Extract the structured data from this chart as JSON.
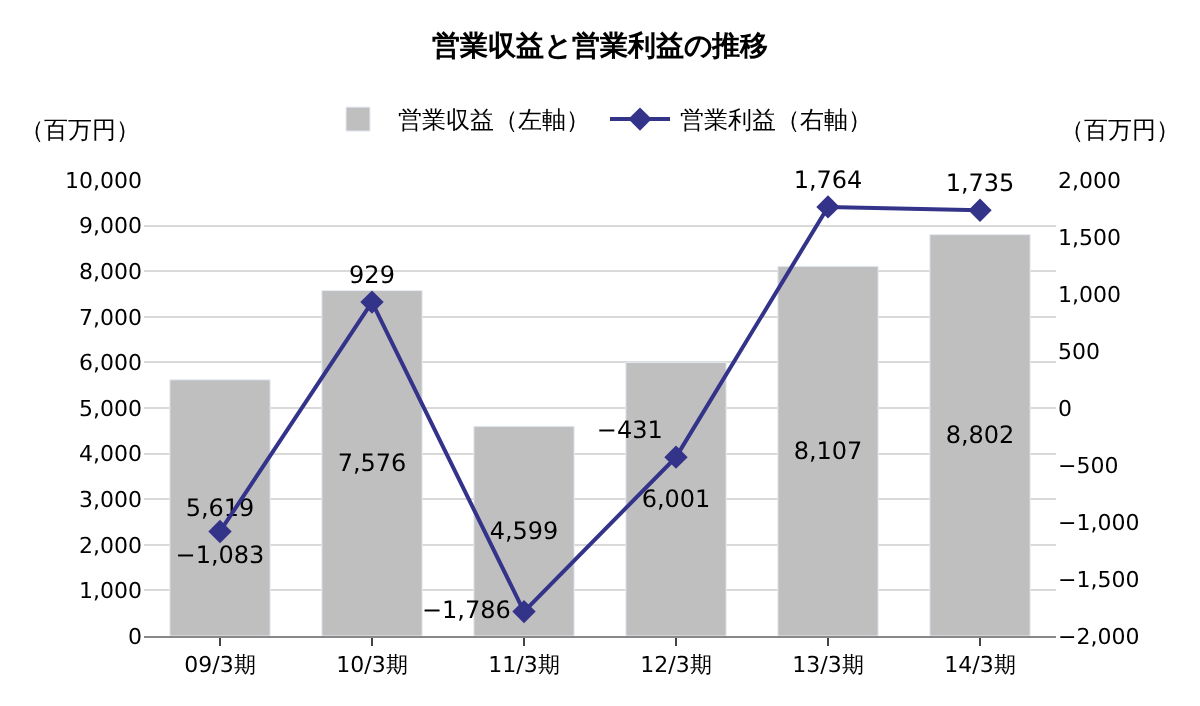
{
  "chart_data": {
    "type": "bar",
    "title": "営業収益と営業利益の推移",
    "ylabel": "（百万円）",
    "y2label": "（百万円）",
    "categories": [
      "09/3期",
      "10/3期",
      "11/3期",
      "12/3期",
      "13/3期",
      "14/3期"
    ],
    "series": [
      {
        "name": "営業収益（左軸）",
        "color": "#bfbfbf",
        "values": [
          5619,
          7576,
          4599,
          6001,
          8107,
          8802
        ],
        "value_labels": [
          "5,619",
          "7,576",
          "4,599",
          "6,001",
          "8,107",
          "8,802"
        ]
      },
      {
        "name": "営業利益（右軸）",
        "type": "line",
        "axis": "y2",
        "color": "#33338a",
        "marker": "diamond",
        "values": [
          -1083,
          929,
          -1786,
          -431,
          1764,
          1735
        ],
        "value_labels": [
          "−1,083",
          "929",
          "−1,786",
          "−431",
          "1,764",
          "1,735"
        ]
      }
    ],
    "ylim": [
      0,
      10000
    ],
    "yticks": [
      0,
      {
        "value": 1000,
        "label": "1,000"
      },
      {
        "value": 2000,
        "label": "2,000"
      },
      {
        "value": 3000,
        "label": "3,000"
      },
      {
        "value": 4000,
        "label": "4,000"
      },
      {
        "value": 5000,
        "label": "5,000"
      },
      {
        "value": 6000,
        "label": "6,000"
      },
      {
        "value": 7000,
        "label": "7,000"
      },
      {
        "value": 8000,
        "label": "8,000"
      },
      {
        "value": 9000,
        "label": "9,000"
      },
      {
        "value": 10000,
        "label": "10,000"
      }
    ],
    "y2lim": [
      -2000,
      2000
    ],
    "y2ticks": [
      {
        "value": -2000,
        "label": "−2,000"
      },
      {
        "value": -1500,
        "label": "−1,500"
      },
      {
        "value": -1000,
        "label": "−1,000"
      },
      {
        "value": -500,
        "label": "−500"
      },
      0,
      500,
      {
        "value": 1000,
        "label": "1,000"
      },
      {
        "value": 1500,
        "label": "1,500"
      },
      {
        "value": 2000,
        "label": "2,000"
      }
    ],
    "grid": "y",
    "legend": "top"
  }
}
